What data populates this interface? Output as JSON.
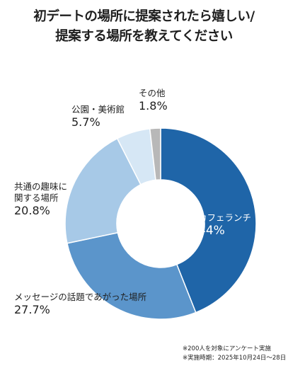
{
  "title_lines": [
    "初デートの場所に提案されたら嬉しい/",
    "提案する場所を教えてください"
  ],
  "chart_data": {
    "type": "pie",
    "donut": true,
    "segments": [
      {
        "label_lines": [
          "カフェランチ"
        ],
        "value": 44,
        "display": "44%",
        "color": "#1f65a8"
      },
      {
        "label_lines": [
          "メッセージの話題であがった場所"
        ],
        "value": 27.7,
        "display": "27.7%",
        "color": "#5b95cb"
      },
      {
        "label_lines": [
          "共通の趣味に",
          "関する場所"
        ],
        "value": 20.8,
        "display": "20.8%",
        "color": "#a7c9e7"
      },
      {
        "label_lines": [
          "公園・美術館"
        ],
        "value": 5.7,
        "display": "5.7%",
        "color": "#d6e7f5"
      },
      {
        "label_lines": [
          "その他"
        ],
        "value": 1.8,
        "display": "1.8%",
        "color": "#b8b8b8"
      }
    ]
  },
  "notes": [
    "※200人を対象にアンケート実施",
    "※実施時期：2025年10月24日〜28日"
  ]
}
